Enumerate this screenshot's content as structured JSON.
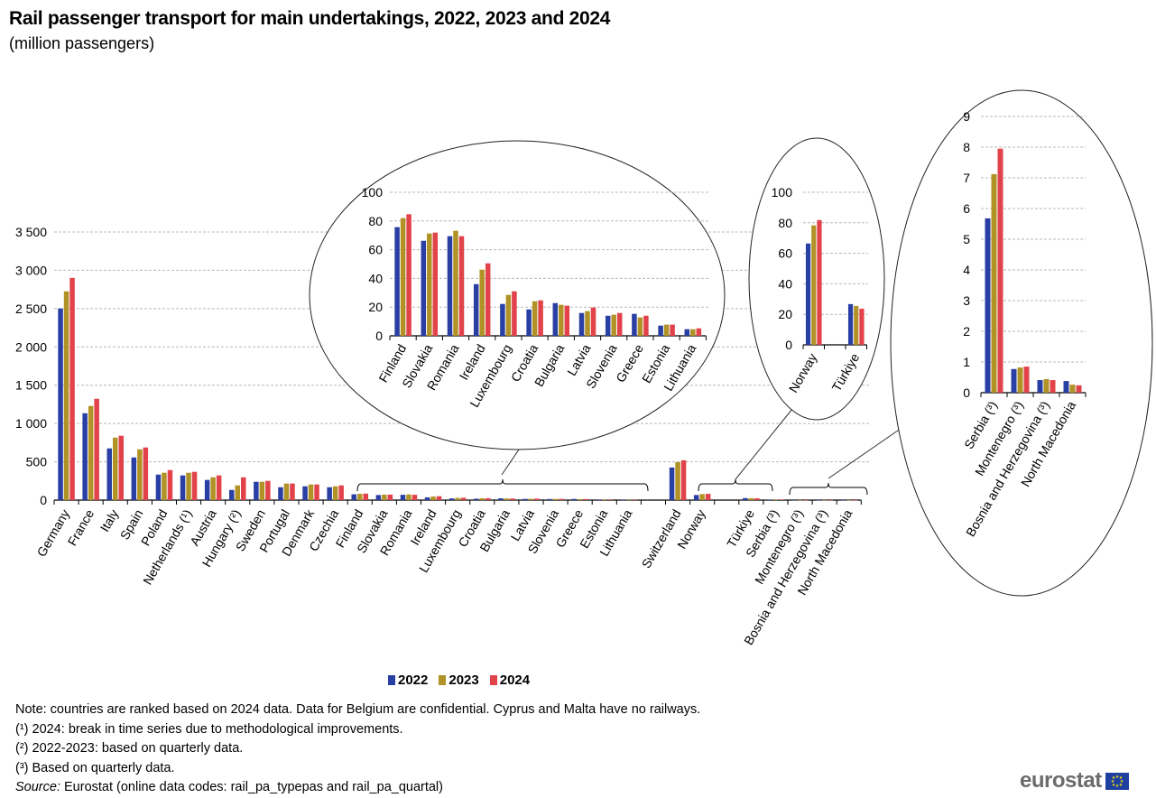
{
  "title": "Rail passenger transport for main undertakings, 2022, 2023 and 2024",
  "subtitle": "(million passengers)",
  "legend": [
    {
      "label": "2022",
      "color": "#2A3FA3"
    },
    {
      "label": "2023",
      "color": "#B09226"
    },
    {
      "label": "2024",
      "color": "#E2434A"
    }
  ],
  "notes": {
    "note": "Note: countries are ranked based on 2024 data. Data for Belgium are confidential. Cyprus and Malta have no railways.",
    "fn1": "(¹) 2024: break in time series due to methodological improvements.",
    "fn2": "(²) 2022-2023: based on quarterly  data.",
    "fn3": "(³) Based on quarterly  data.",
    "source_label": "Source:",
    "source_text": " Eurostat (online data codes: rail_pa_typepas and rail_pa_quartal)"
  },
  "logo": {
    "text": "eurostat",
    "flag": "eu-flag-icon"
  },
  "chart_data": [
    {
      "type": "bar",
      "name": "main",
      "title": "Rail passenger transport for main undertakings, 2022, 2023 and 2024",
      "ylabel": "million passengers",
      "ylim": [
        0,
        3500
      ],
      "yticks": [
        0,
        500,
        1000,
        1500,
        2000,
        2500,
        3000,
        3500
      ],
      "ytick_labels": [
        "0",
        "500",
        "1 000",
        "1 500",
        "2 000",
        "2 500",
        "3 000",
        "3 500"
      ],
      "grid": true,
      "categories": [
        "Germany",
        "France",
        "Italy",
        "Spain",
        "Poland",
        "Netherlands (¹)",
        "Austria",
        "Hungary (²)",
        "Sweden",
        "Portugal",
        "Denmark",
        "Czechia",
        "Finland",
        "Slovakia",
        "Romania",
        "Ireland",
        "Luxembourg",
        "Croatia",
        "Bulgaria",
        "Latvia",
        "Slovenia",
        "Greece",
        "Estonia",
        "Lithuania",
        "",
        "Switzerland",
        "Norway",
        "",
        "Türkiye",
        "Serbia (³)",
        "Montenegro (³)",
        "Bosnia and Herzegovina (³)",
        "North Macedonia"
      ],
      "series": [
        {
          "name": "2022",
          "values": [
            2501,
            1134,
            675,
            557,
            333,
            322,
            263,
            133,
            239,
            168,
            180,
            168,
            75.7,
            66.2,
            69.4,
            36,
            22.2,
            18.4,
            22.8,
            15.9,
            14,
            15.3,
            7.1,
            4.6,
            null,
            425,
            66.4,
            null,
            26.7,
            5.68,
            0.77,
            0.41,
            0.38
          ]
        },
        {
          "name": "2023",
          "values": [
            2725,
            1229,
            816,
            663,
            357,
            357,
            298,
            192,
            239,
            216,
            204,
            180,
            82,
            71.3,
            73.2,
            46.1,
            28.5,
            24.1,
            21.6,
            17.2,
            14.7,
            12.8,
            7.8,
            4.6,
            null,
            495,
            78.3,
            null,
            25.5,
            7.12,
            0.82,
            0.44,
            0.26
          ]
        },
        {
          "name": "2024",
          "values": [
            2901,
            1323,
            840,
            687,
            392,
            369,
            322,
            298,
            251,
            216,
            204,
            192,
            84.7,
            71.9,
            69.4,
            50.5,
            31,
            24.7,
            21,
            19.7,
            15.9,
            14,
            7.8,
            5.2,
            null,
            520,
            81.8,
            null,
            23.7,
            7.95,
            0.85,
            0.41,
            0.24
          ]
        }
      ],
      "legend_position": "bottom"
    },
    {
      "type": "bar",
      "name": "inset-eu-small",
      "ylim": [
        0,
        100
      ],
      "yticks": [
        0,
        20,
        40,
        60,
        80,
        100
      ],
      "ytick_labels": [
        "0",
        "20",
        "40",
        "60",
        "80",
        "100"
      ],
      "categories": [
        "Finland",
        "Slovakia",
        "Romania",
        "Ireland",
        "Luxembourg",
        "Croatia",
        "Bulgaria",
        "Latvia",
        "Slovenia",
        "Greece",
        "Estonia",
        "Lithuania"
      ],
      "series": [
        {
          "name": "2022",
          "values": [
            75.7,
            66.2,
            69.4,
            36,
            22.2,
            18.4,
            22.8,
            15.9,
            14,
            15.3,
            7.1,
            4.6
          ]
        },
        {
          "name": "2023",
          "values": [
            82,
            71.3,
            73.2,
            46.1,
            28.5,
            24.1,
            21.6,
            17.2,
            14.7,
            12.8,
            7.8,
            4.6
          ]
        },
        {
          "name": "2024",
          "values": [
            84.7,
            71.9,
            69.4,
            50.5,
            31,
            24.7,
            21,
            19.7,
            15.9,
            14,
            7.8,
            5.2
          ]
        }
      ]
    },
    {
      "type": "bar",
      "name": "inset-norway-turkiye",
      "ylim": [
        0,
        100
      ],
      "yticks": [
        0,
        20,
        40,
        60,
        80,
        100
      ],
      "ytick_labels": [
        "0",
        "20",
        "40",
        "60",
        "80",
        "100"
      ],
      "categories": [
        "Norway",
        "",
        "Türkiye"
      ],
      "series": [
        {
          "name": "2022",
          "values": [
            66.4,
            null,
            26.7
          ]
        },
        {
          "name": "2023",
          "values": [
            78.3,
            null,
            25.5
          ]
        },
        {
          "name": "2024",
          "values": [
            81.8,
            null,
            23.7
          ]
        }
      ]
    },
    {
      "type": "bar",
      "name": "inset-western-balkans",
      "ylim": [
        0,
        9
      ],
      "yticks": [
        0,
        1,
        2,
        3,
        4,
        5,
        6,
        7,
        8,
        9
      ],
      "ytick_labels": [
        "0",
        "1",
        "2",
        "3",
        "4",
        "5",
        "6",
        "7",
        "8",
        "9"
      ],
      "categories": [
        "Serbia (³)",
        "Montenegro (³)",
        "Bosnia and Herzegovina (³)",
        "North Macedonia"
      ],
      "series": [
        {
          "name": "2022",
          "values": [
            5.68,
            0.77,
            0.41,
            0.38
          ]
        },
        {
          "name": "2023",
          "values": [
            7.12,
            0.82,
            0.44,
            0.26
          ]
        },
        {
          "name": "2024",
          "values": [
            7.95,
            0.85,
            0.41,
            0.24
          ]
        }
      ]
    }
  ]
}
